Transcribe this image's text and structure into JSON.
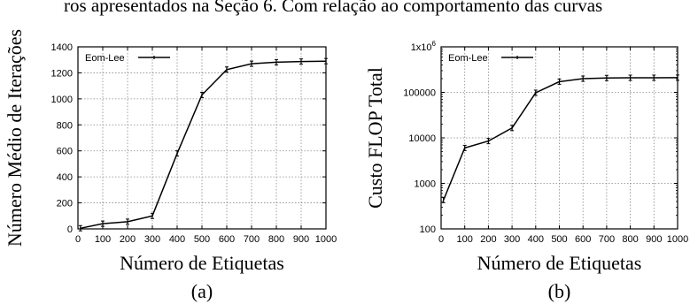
{
  "top_text": "ros apresentados na Seção 6. Com relação ao comportamento das curvas",
  "chart_data": [
    {
      "type": "line",
      "panel_label": "(a)",
      "xlabel": "Número de Etiquetas",
      "ylabel": "Número Médio de Iterações",
      "xlim": [
        0,
        1000
      ],
      "ylim": [
        0,
        1400
      ],
      "yscale": "linear",
      "grid": true,
      "legend_position": "top-left",
      "x_ticks": [
        "0",
        "100",
        "200",
        "300",
        "400",
        "500",
        "600",
        "700",
        "800",
        "900",
        "1000"
      ],
      "y_ticks": [
        "0",
        "200",
        "400",
        "600",
        "800",
        "1000",
        "1200",
        "1400"
      ],
      "x": [
        10,
        100,
        200,
        300,
        400,
        500,
        600,
        700,
        800,
        900,
        1000
      ],
      "series": [
        {
          "name": "Eom-Lee",
          "values": [
            5,
            40,
            55,
            100,
            580,
            1030,
            1225,
            1270,
            1282,
            1287,
            1290
          ]
        }
      ]
    },
    {
      "type": "line",
      "panel_label": "(b)",
      "xlabel": "Número de Etiquetas",
      "ylabel": "Custo FLOP Total",
      "xlim": [
        0,
        1000
      ],
      "ylim": [
        100,
        1000000
      ],
      "yscale": "log",
      "grid": true,
      "legend_position": "top-left",
      "x_ticks": [
        "0",
        "100",
        "200",
        "300",
        "400",
        "500",
        "600",
        "700",
        "800",
        "900",
        "1000"
      ],
      "y_ticks": [
        "100",
        "1000",
        "10000",
        "100000",
        "1x10^6"
      ],
      "x": [
        10,
        100,
        200,
        300,
        400,
        500,
        600,
        700,
        800,
        900,
        1000
      ],
      "series": [
        {
          "name": "Eom-Lee",
          "values": [
            430,
            6000,
            8500,
            16500,
            98000,
            172000,
            200000,
            207000,
            209000,
            209500,
            210000
          ]
        }
      ]
    }
  ]
}
